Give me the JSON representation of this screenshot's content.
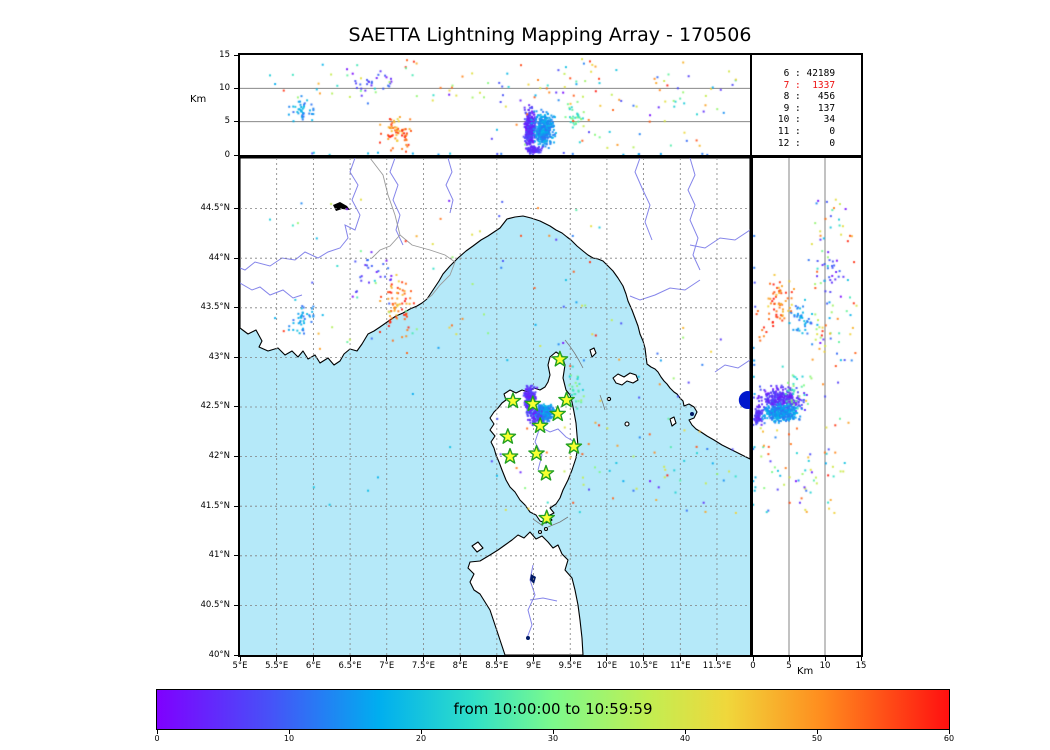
{
  "chart_data": {
    "type": "scatter",
    "title": "SAETTA Lightning Mapping Array - 170506",
    "seed": 42,
    "panels": {
      "top": {
        "x": "longitude",
        "y": "altitude_km",
        "ylim": [
          0,
          15
        ],
        "ylabel": "Km",
        "yticks": [
          {
            "v": 0,
            "l": "0"
          },
          {
            "v": 5,
            "l": "5"
          },
          {
            "v": 10,
            "l": "10"
          },
          {
            "v": 15,
            "l": "15"
          }
        ],
        "gridlines_km": [
          5,
          10
        ]
      },
      "map": {
        "x": "longitude",
        "y": "latitude",
        "xlim": [
          5,
          11.95
        ],
        "ylim": [
          40,
          45.01
        ],
        "xticks": [
          {
            "v": 5,
            "l": "5°E"
          },
          {
            "v": 5.5,
            "l": "5.5°E"
          },
          {
            "v": 6,
            "l": "6°E"
          },
          {
            "v": 6.5,
            "l": "6.5°E"
          },
          {
            "v": 7,
            "l": "7°E"
          },
          {
            "v": 7.5,
            "l": "7.5°E"
          },
          {
            "v": 8,
            "l": "8°E"
          },
          {
            "v": 8.5,
            "l": "8.5°E"
          },
          {
            "v": 9,
            "l": "9°E"
          },
          {
            "v": 9.5,
            "l": "9.5°E"
          },
          {
            "v": 10,
            "l": "10°E"
          },
          {
            "v": 10.5,
            "l": "10.5°E"
          },
          {
            "v": 11,
            "l": "11°E"
          },
          {
            "v": 11.5,
            "l": "11.5°E"
          }
        ],
        "yticks": [
          {
            "v": 40,
            "l": "40°N"
          },
          {
            "v": 40.5,
            "l": "40.5°N"
          },
          {
            "v": 41,
            "l": "41°N"
          },
          {
            "v": 41.5,
            "l": "41.5°N"
          },
          {
            "v": 42,
            "l": "42°N"
          },
          {
            "v": 42.5,
            "l": "42.5°N"
          },
          {
            "v": 43,
            "l": "43°N"
          },
          {
            "v": 43.5,
            "l": "43.5°N"
          },
          {
            "v": 44,
            "l": "44°N"
          },
          {
            "v": 44.5,
            "l": "44.5°N"
          }
        ]
      },
      "right": {
        "x": "altitude_km",
        "y": "latitude",
        "xlim": [
          0,
          15
        ],
        "xlabel": "Km",
        "xticks": [
          {
            "v": 0,
            "l": "0"
          },
          {
            "v": 5,
            "l": "5"
          },
          {
            "v": 10,
            "l": "10"
          },
          {
            "v": 15,
            "l": "15"
          }
        ],
        "gridlines_km": [
          5,
          10
        ]
      }
    },
    "source_counts": [
      {
        "level": "6",
        "count": "42189",
        "highlight": false
      },
      {
        "level": "7",
        "count": "1337",
        "highlight": true
      },
      {
        "level": "8",
        "count": "456",
        "highlight": false
      },
      {
        "level": "9",
        "count": "137",
        "highlight": false
      },
      {
        "level": "10",
        "count": "34",
        "highlight": false
      },
      {
        "level": "11",
        "count": "0",
        "highlight": false
      },
      {
        "level": "12",
        "count": "0",
        "highlight": false
      }
    ],
    "colorbar": {
      "label": "from 10:00:00 to 10:59:59",
      "min": 0,
      "max": 60,
      "ticks": [
        {
          "v": 0,
          "l": "0"
        },
        {
          "v": 10,
          "l": "10"
        },
        {
          "v": 20,
          "l": "20"
        },
        {
          "v": 30,
          "l": "30"
        },
        {
          "v": 40,
          "l": "40"
        },
        {
          "v": 50,
          "l": "50"
        },
        {
          "v": 60,
          "l": "60"
        }
      ],
      "stops": [
        {
          "pos": 0.0,
          "color": "#7f00ff"
        },
        {
          "pos": 0.14,
          "color": "#4850f8"
        },
        {
          "pos": 0.28,
          "color": "#00aeef"
        },
        {
          "pos": 0.4,
          "color": "#30e0c8"
        },
        {
          "pos": 0.5,
          "color": "#7cfa8c"
        },
        {
          "pos": 0.62,
          "color": "#c2ee52"
        },
        {
          "pos": 0.72,
          "color": "#f0d73b"
        },
        {
          "pos": 0.84,
          "color": "#ff8c1e"
        },
        {
          "pos": 1.0,
          "color": "#ff1010"
        }
      ]
    },
    "station_marker": {
      "fill": "#f8ff30",
      "stroke": "#22a022"
    },
    "stations_lon_lat": [
      [
        9.36,
        42.98
      ],
      [
        8.72,
        42.56
      ],
      [
        8.99,
        42.53
      ],
      [
        9.45,
        42.57
      ],
      [
        9.33,
        42.43
      ],
      [
        9.09,
        42.31
      ],
      [
        8.65,
        42.2
      ],
      [
        9.55,
        42.1
      ],
      [
        8.68,
        42.0
      ],
      [
        9.04,
        42.03
      ],
      [
        9.17,
        41.83
      ],
      [
        9.18,
        41.38
      ]
    ],
    "special_marker": {
      "lon": 11.92,
      "lat": 42.57,
      "color": "#0018cc",
      "radius_px": 9
    },
    "clusters": [
      {
        "name": "corsica-core-violet",
        "n": 320,
        "lon": [
          8.86,
          9.04
        ],
        "lat": [
          42.42,
          42.72
        ],
        "alt": [
          0.5,
          7.5
        ],
        "t": [
          2,
          9
        ],
        "dist": "gauss"
      },
      {
        "name": "corsica-core-blue",
        "n": 380,
        "lon": [
          8.98,
          9.3
        ],
        "lat": [
          42.34,
          42.54
        ],
        "alt": [
          1.0,
          6.8
        ],
        "t": [
          11,
          19
        ],
        "dist": "gauss"
      },
      {
        "name": "corsica-low-violet",
        "n": 70,
        "lon": [
          8.88,
          9.14
        ],
        "lat": [
          42.3,
          42.52
        ],
        "alt": [
          0.0,
          1.4
        ],
        "t": [
          3,
          9
        ],
        "dist": "gauss"
      },
      {
        "name": "east-corsica-teal",
        "n": 30,
        "lon": [
          9.4,
          9.75
        ],
        "lat": [
          42.35,
          42.95
        ],
        "alt": [
          3.5,
          8.0
        ],
        "t": [
          20,
          34
        ],
        "dist": "gauss"
      },
      {
        "name": "var-provence-blue",
        "n": 40,
        "lon": [
          5.6,
          6.1
        ],
        "lat": [
          43.2,
          43.6
        ],
        "alt": [
          5.0,
          8.5
        ],
        "t": [
          10,
          20
        ],
        "dist": "gauss"
      },
      {
        "name": "alpes-orange-red",
        "n": 55,
        "lon": [
          6.85,
          7.45
        ],
        "lat": [
          43.3,
          43.85
        ],
        "alt": [
          1.5,
          6.0
        ],
        "t": [
          42,
          60
        ],
        "dist": "gauss"
      },
      {
        "name": "alpes-violet-high",
        "n": 25,
        "lon": [
          6.4,
          7.15
        ],
        "lat": [
          43.55,
          44.15
        ],
        "alt": [
          8.0,
          13.0
        ],
        "t": [
          1,
          12
        ],
        "dist": "gauss"
      },
      {
        "name": "coastal-red-low",
        "n": 12,
        "lon": [
          6.9,
          7.3
        ],
        "lat": [
          43.15,
          43.5
        ],
        "alt": [
          0.5,
          3.0
        ],
        "t": [
          50,
          60
        ],
        "dist": "uniform"
      },
      {
        "name": "background-north",
        "n": 70,
        "lon": [
          5.3,
          10.2
        ],
        "lat": [
          42.95,
          44.65
        ],
        "alt": [
          8.0,
          14.5
        ],
        "t": [
          0,
          60
        ],
        "dist": "uniform"
      },
      {
        "name": "background-east",
        "n": 30,
        "lon": [
          9.3,
          11.85
        ],
        "lat": [
          41.6,
          43.4
        ],
        "alt": [
          6.0,
          14.0
        ],
        "t": [
          0,
          60
        ],
        "dist": "uniform"
      },
      {
        "name": "south-scatter",
        "n": 50,
        "lon": [
          8.4,
          11.8
        ],
        "lat": [
          41.4,
          42.3
        ],
        "alt": [
          1.0,
          12.0
        ],
        "t": [
          0,
          60
        ],
        "dist": "uniform"
      },
      {
        "name": "ground-level",
        "n": 18,
        "lon": [
          5.6,
          11.8
        ],
        "lat": [
          41.5,
          44.5
        ],
        "alt": [
          0.0,
          0.4
        ],
        "t": [
          8,
          20
        ],
        "dist": "uniform"
      }
    ]
  }
}
